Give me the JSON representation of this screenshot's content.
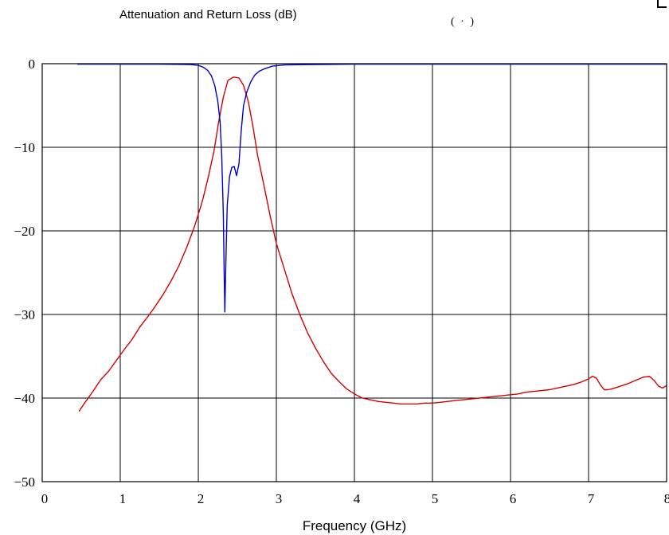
{
  "chart_data": {
    "type": "line",
    "title": "Attenuation and Return Loss (dB)",
    "title_fragment": "(   ·          )",
    "xlabel": "Frequency (GHz)",
    "ylabel": "",
    "xlim": [
      0,
      8
    ],
    "ylim": [
      -50,
      0
    ],
    "grid": true,
    "x_ticks": [
      "0",
      "1",
      "2",
      "3",
      "4",
      "5",
      "6",
      "7",
      "8"
    ],
    "y_ticks": [
      "0",
      "−10",
      "−20",
      "−30",
      "−40",
      "−50"
    ],
    "series": [
      {
        "color": "#d40000",
        "points": [
          [
            0.47,
            -41.6
          ],
          [
            0.55,
            -40.5
          ],
          [
            0.65,
            -39.2
          ],
          [
            0.75,
            -37.8
          ],
          [
            0.85,
            -36.8
          ],
          [
            0.95,
            -35.5
          ],
          [
            1.05,
            -34.2
          ],
          [
            1.15,
            -33.0
          ],
          [
            1.25,
            -31.5
          ],
          [
            1.35,
            -30.3
          ],
          [
            1.45,
            -29.0
          ],
          [
            1.55,
            -27.6
          ],
          [
            1.65,
            -26.0
          ],
          [
            1.75,
            -24.2
          ],
          [
            1.85,
            -22.0
          ],
          [
            1.95,
            -19.5
          ],
          [
            2.05,
            -16.5
          ],
          [
            2.13,
            -13.5
          ],
          [
            2.2,
            -10.5
          ],
          [
            2.26,
            -7.0
          ],
          [
            2.32,
            -4.0
          ],
          [
            2.38,
            -2.0
          ],
          [
            2.45,
            -1.6
          ],
          [
            2.52,
            -1.7
          ],
          [
            2.58,
            -2.6
          ],
          [
            2.64,
            -4.5
          ],
          [
            2.7,
            -7.5
          ],
          [
            2.76,
            -11.0
          ],
          [
            2.84,
            -14.5
          ],
          [
            2.92,
            -18.2
          ],
          [
            3.0,
            -21.5
          ],
          [
            3.1,
            -24.5
          ],
          [
            3.2,
            -27.5
          ],
          [
            3.3,
            -30.0
          ],
          [
            3.4,
            -32.2
          ],
          [
            3.5,
            -34.0
          ],
          [
            3.6,
            -35.6
          ],
          [
            3.7,
            -37.0
          ],
          [
            3.8,
            -38.0
          ],
          [
            3.9,
            -38.9
          ],
          [
            4.0,
            -39.5
          ],
          [
            4.1,
            -40.0
          ],
          [
            4.2,
            -40.2
          ],
          [
            4.3,
            -40.4
          ],
          [
            4.4,
            -40.5
          ],
          [
            4.5,
            -40.6
          ],
          [
            4.6,
            -40.7
          ],
          [
            4.7,
            -40.7
          ],
          [
            4.8,
            -40.7
          ],
          [
            4.9,
            -40.6
          ],
          [
            5.0,
            -40.6
          ],
          [
            5.1,
            -40.5
          ],
          [
            5.2,
            -40.4
          ],
          [
            5.3,
            -40.3
          ],
          [
            5.4,
            -40.2
          ],
          [
            5.5,
            -40.1
          ],
          [
            5.6,
            -40.0
          ],
          [
            5.7,
            -39.9
          ],
          [
            5.8,
            -39.8
          ],
          [
            5.9,
            -39.7
          ],
          [
            6.0,
            -39.6
          ],
          [
            6.1,
            -39.5
          ],
          [
            6.2,
            -39.3
          ],
          [
            6.3,
            -39.2
          ],
          [
            6.4,
            -39.1
          ],
          [
            6.5,
            -39.0
          ],
          [
            6.6,
            -38.8
          ],
          [
            6.7,
            -38.6
          ],
          [
            6.8,
            -38.4
          ],
          [
            6.9,
            -38.1
          ],
          [
            7.0,
            -37.7
          ],
          [
            7.05,
            -37.4
          ],
          [
            7.1,
            -37.6
          ],
          [
            7.15,
            -38.4
          ],
          [
            7.2,
            -39.0
          ],
          [
            7.25,
            -39.0
          ],
          [
            7.3,
            -38.9
          ],
          [
            7.4,
            -38.6
          ],
          [
            7.5,
            -38.3
          ],
          [
            7.6,
            -37.9
          ],
          [
            7.7,
            -37.5
          ],
          [
            7.78,
            -37.4
          ],
          [
            7.84,
            -37.9
          ],
          [
            7.9,
            -38.6
          ],
          [
            7.95,
            -38.8
          ],
          [
            8.0,
            -38.5
          ]
        ]
      },
      {
        "color": "#0000cc",
        "points": [
          [
            0.45,
            -0.05
          ],
          [
            1.0,
            -0.05
          ],
          [
            1.5,
            -0.05
          ],
          [
            1.9,
            -0.1
          ],
          [
            2.0,
            -0.2
          ],
          [
            2.06,
            -0.4
          ],
          [
            2.12,
            -0.8
          ],
          [
            2.17,
            -1.5
          ],
          [
            2.21,
            -2.6
          ],
          [
            2.25,
            -4.5
          ],
          [
            2.28,
            -7.0
          ],
          [
            2.3,
            -11.0
          ],
          [
            2.32,
            -18.0
          ],
          [
            2.33,
            -24.0
          ],
          [
            2.34,
            -29.7
          ],
          [
            2.35,
            -25.0
          ],
          [
            2.37,
            -17.0
          ],
          [
            2.4,
            -13.5
          ],
          [
            2.43,
            -12.4
          ],
          [
            2.46,
            -12.3
          ],
          [
            2.49,
            -13.4
          ],
          [
            2.52,
            -12.0
          ],
          [
            2.55,
            -8.0
          ],
          [
            2.58,
            -5.0
          ],
          [
            2.62,
            -3.4
          ],
          [
            2.67,
            -2.2
          ],
          [
            2.72,
            -1.4
          ],
          [
            2.78,
            -0.9
          ],
          [
            2.85,
            -0.6
          ],
          [
            2.95,
            -0.3
          ],
          [
            3.1,
            -0.15
          ],
          [
            3.5,
            -0.1
          ],
          [
            4.0,
            -0.05
          ],
          [
            5.0,
            -0.05
          ],
          [
            6.0,
            -0.05
          ],
          [
            7.0,
            -0.05
          ],
          [
            8.0,
            -0.05
          ]
        ]
      }
    ]
  }
}
